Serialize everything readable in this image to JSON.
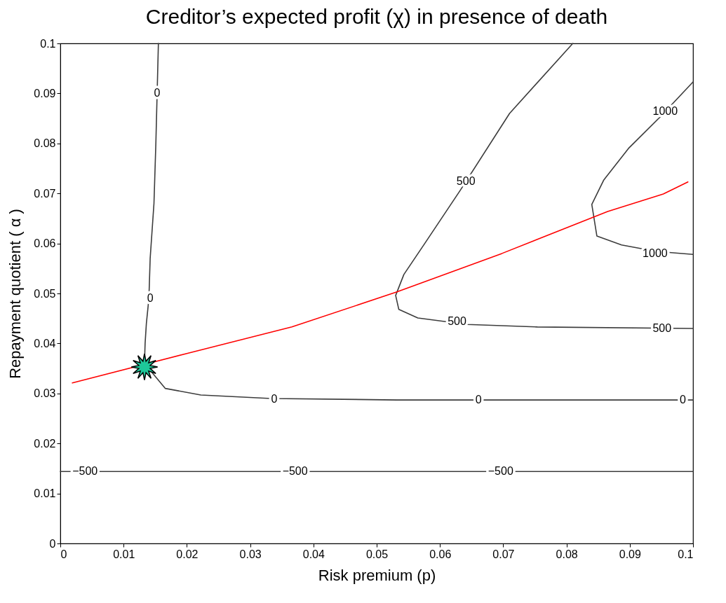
{
  "chart_data": {
    "type": "line",
    "title": "Creditor’s expected profit (χ) in presence of death",
    "xlabel": "Risk premium (p)",
    "ylabel": "Repayment quotient  ( α )",
    "xlim": [
      0,
      0.1
    ],
    "ylim": [
      0,
      0.1
    ],
    "xticks": [
      0,
      0.01,
      0.02,
      0.03,
      0.04,
      0.05,
      0.06,
      0.07,
      0.08,
      0.09,
      0.1
    ],
    "yticks": [
      0,
      0.01,
      0.02,
      0.03,
      0.04,
      0.05,
      0.06,
      0.07,
      0.08,
      0.09,
      0.1
    ],
    "series": [
      {
        "color": "#3c3c3c",
        "x": [
          0.0155,
          0.0153,
          0.0151,
          0.0148,
          0.0142,
          0.014,
          0.0136,
          0.0134,
          0.0133,
          0.0166,
          0.0222,
          0.0333,
          0.0532,
          0.1
        ],
        "values": [
          0.1,
          0.09,
          0.08,
          0.068,
          0.057,
          0.049,
          0.044,
          0.04,
          0.036,
          0.031,
          0.0297,
          0.029,
          0.0287,
          0.0287
        ]
      },
      {
        "color": "#3c3c3c",
        "x": [
          0,
          0.1
        ],
        "values": [
          0.0144,
          0.0144
        ]
      },
      {
        "color": "#3c3c3c",
        "x": [
          0.081,
          0.071,
          0.0632,
          0.0576,
          0.0543,
          0.053,
          0.0535,
          0.0565,
          0.0643,
          0.0754,
          0.1
        ],
        "values": [
          0.1,
          0.086,
          0.0706,
          0.06,
          0.0538,
          0.0496,
          0.0468,
          0.0451,
          0.0438,
          0.0433,
          0.043
        ]
      },
      {
        "color": "#3c3c3c",
        "x": [
          0.1,
          0.0948,
          0.0898,
          0.0859,
          0.084,
          0.0848,
          0.0887,
          0.0942,
          0.1
        ],
        "values": [
          0.0923,
          0.0853,
          0.079,
          0.0727,
          0.0678,
          0.0615,
          0.0597,
          0.0584,
          0.0578
        ]
      },
      {
        "color": "#ff0000",
        "x": [
          0.0019,
          0.02,
          0.0366,
          0.0532,
          0.0698,
          0.0865,
          0.0953,
          0.0992
        ],
        "values": [
          0.0321,
          0.038,
          0.0433,
          0.0503,
          0.058,
          0.0664,
          0.0699,
          0.0723
        ]
      },
      {
        "type": "scatter",
        "marker": "star",
        "color": "#1ec89a",
        "x": [
          0.0133
        ],
        "values": [
          0.0353
        ]
      }
    ],
    "annotations": [
      {
        "text": "0",
        "x": 0.0153,
        "y": 0.09
      },
      {
        "text": "0",
        "x": 0.0142,
        "y": 0.049
      },
      {
        "text": "0",
        "x": 0.0338,
        "y": 0.0289
      },
      {
        "text": "0",
        "x": 0.0661,
        "y": 0.0287
      },
      {
        "text": "0",
        "x": 0.0984,
        "y": 0.0287
      },
      {
        "text": "500",
        "x": 0.0641,
        "y": 0.0724
      },
      {
        "text": "500",
        "x": 0.0627,
        "y": 0.0444
      },
      {
        "text": "500",
        "x": 0.0951,
        "y": 0.043
      },
      {
        "text": "1000",
        "x": 0.0956,
        "y": 0.0864
      },
      {
        "text": "1000",
        "x": 0.094,
        "y": 0.058
      },
      {
        "text": "−500",
        "x": 0.0039,
        "y": 0.0144
      },
      {
        "text": "−500",
        "x": 0.0371,
        "y": 0.0144
      },
      {
        "text": "−500",
        "x": 0.0696,
        "y": 0.0144
      }
    ]
  }
}
